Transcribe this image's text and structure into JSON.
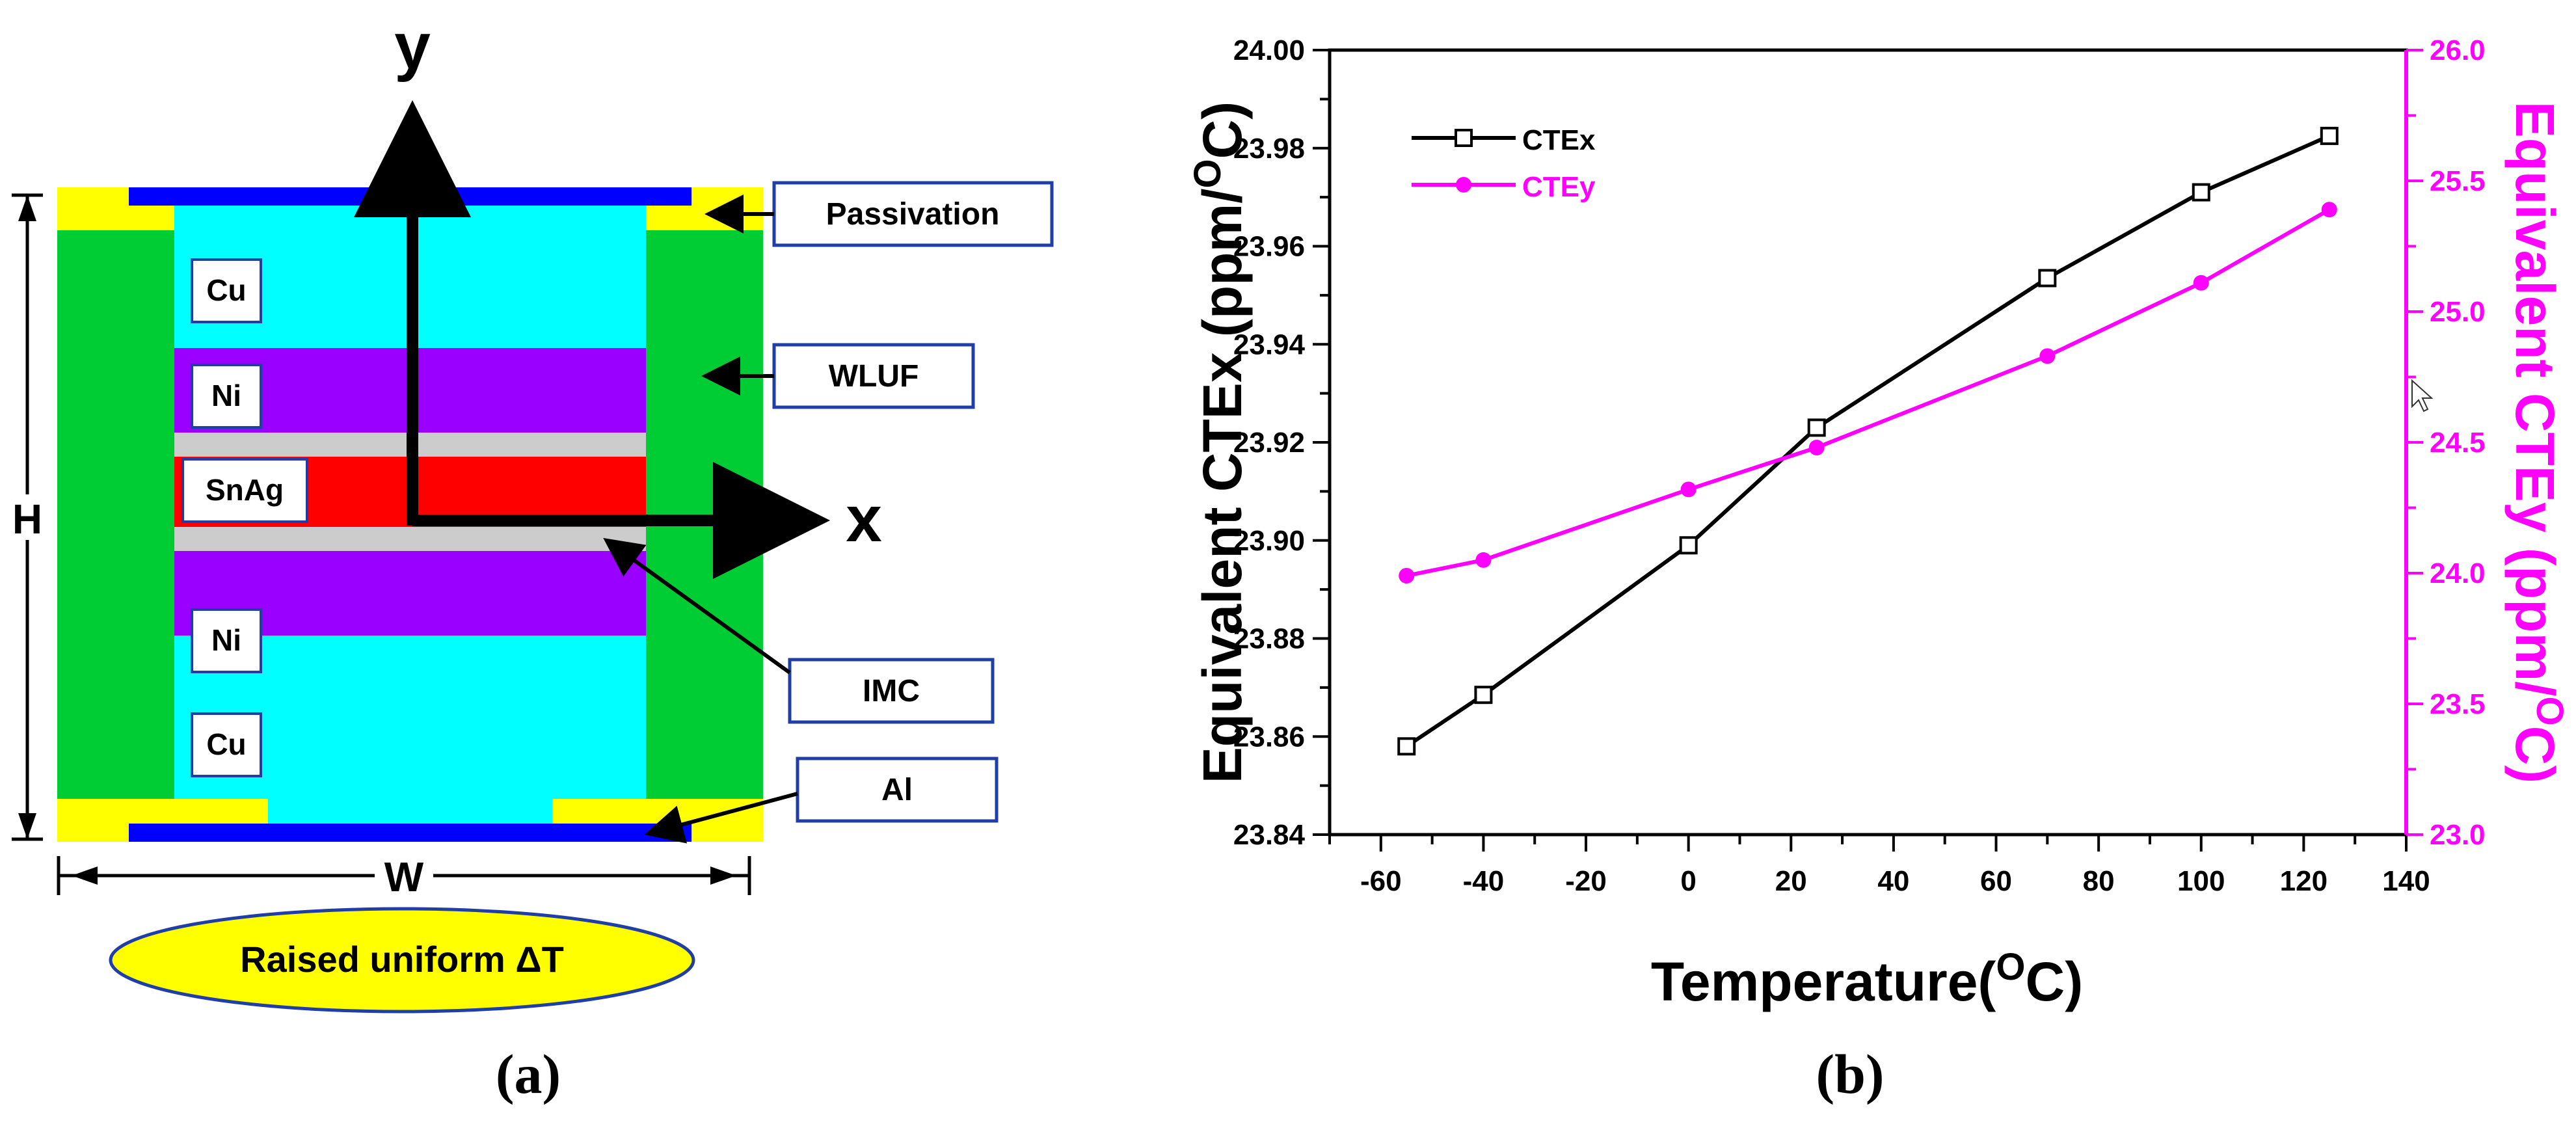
{
  "panel_a": {
    "axis_y": "y",
    "axis_x": "x",
    "layers": {
      "cu_top": "Cu",
      "ni_top": "Ni",
      "snag": "SnAg",
      "ni_bottom": "Ni",
      "cu_bottom": "Cu"
    },
    "callouts": {
      "passivation": "Passivation",
      "wluf": "WLUF",
      "imc": "IMC",
      "al": "Al"
    },
    "dim_h": "H",
    "dim_w": "W",
    "load": "Raised uniform ΔT",
    "caption_a": "a",
    "colors": {
      "cu": "#00ffff",
      "ni": "#9900ff",
      "imc": "#cccccc",
      "snag": "#ff0000",
      "wluf": "#00cc33",
      "passivation": "#ffff00",
      "pad": "#0000ff"
    }
  },
  "chart_data": {
    "type": "line",
    "xlabel": "Temperature(",
    "xlabel_sup": "O",
    "xlabel_end": "C)",
    "ylabel_left": "Equivalent CTEx (ppm/",
    "ylabel_right": "Equivalent CTEy (ppm/",
    "ylabel_sup": "O",
    "ylabel_end": "C)",
    "xlim": [
      -70,
      140
    ],
    "ylim_left": [
      23.84,
      24.0
    ],
    "ylim_right": [
      23.0,
      26.0
    ],
    "x_ticks": [
      "-60",
      "-40",
      "-20",
      "0",
      "20",
      "40",
      "60",
      "80",
      "100",
      "120",
      "140"
    ],
    "y_ticks_left": [
      "23.84",
      "23.86",
      "23.88",
      "23.90",
      "23.92",
      "23.94",
      "23.96",
      "23.98",
      "24.00"
    ],
    "y_ticks_right": [
      "23.0",
      "23.5",
      "24.0",
      "24.5",
      "25.0",
      "25.5",
      "26.0"
    ],
    "series": [
      {
        "name": "CTEx",
        "axis": "left",
        "color": "#000000",
        "marker": "open-square",
        "x": [
          -55,
          -40,
          0,
          25,
          70,
          100,
          125
        ],
        "values": [
          23.858,
          23.8685,
          23.899,
          23.923,
          23.9535,
          23.971,
          23.9825
        ]
      },
      {
        "name": "CTEy",
        "axis": "right",
        "color": "#ff00ff",
        "marker": "filled-circle",
        "x": [
          -55,
          -40,
          0,
          25,
          70,
          100,
          125
        ],
        "values": [
          23.99,
          24.05,
          24.32,
          24.48,
          24.83,
          25.11,
          25.39
        ]
      }
    ],
    "legend": [
      "CTEx",
      "CTEy"
    ],
    "caption_b": "b"
  }
}
